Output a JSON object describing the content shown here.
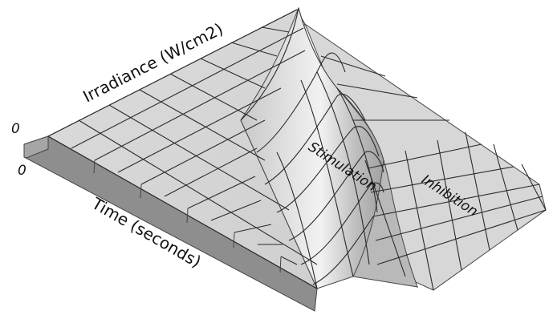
{
  "figure": {
    "axis_irradiance": "Irradiance (W/cm2)",
    "axis_time": "Time (seconds)",
    "origin_irradiance": "0",
    "origin_time": "0",
    "region_stimulation": "Stimulation",
    "region_inhibition": "Inhibition",
    "colors": {
      "surface_light": "#e8e8e8",
      "surface_mid": "#cfcfcf",
      "surface_dark": "#9a9a9a",
      "grid_line": "#2a2a2a",
      "base_side": "#8c8c8c"
    }
  }
}
